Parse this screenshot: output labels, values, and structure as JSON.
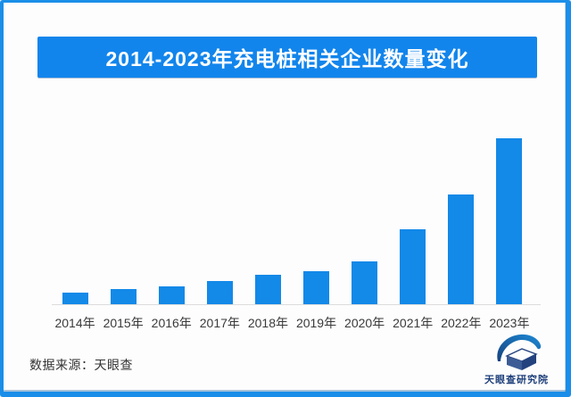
{
  "frame": {
    "border_color": "#1a8ee8",
    "background_color": "#fdfdfd"
  },
  "header": {
    "title": "2014-2023年充电桩相关企业数量变化",
    "banner_color": "#1285ec",
    "title_color": "#ffffff"
  },
  "chart_data": {
    "type": "bar",
    "title": "2014-2023年充电桩相关企业数量变化",
    "categories": [
      "2014年",
      "2015年",
      "2016年",
      "2017年",
      "2018年",
      "2019年",
      "2020年",
      "2021年",
      "2022年",
      "2023年"
    ],
    "values": [
      7,
      9,
      11,
      14,
      18,
      20,
      26,
      45,
      66,
      100
    ],
    "values_note": "relative bar heights estimated from pixels (2023 = 100); the chart displays no numeric axis, gridlines or data labels",
    "xlabel": "",
    "ylabel": "",
    "ylim": [
      0,
      100
    ],
    "grid": false,
    "legend": false,
    "bar_color": "#1389e8",
    "axis_line_color": "#dcdcdc",
    "tick_label_color": "#3a3a3a"
  },
  "footer": {
    "source_label": "数据来源：天眼查",
    "logo": {
      "name": "天眼查研究院",
      "text_color": "#1e3f7a",
      "swoosh_color_dark": "#15427e",
      "swoosh_color_light": "#1e8ad6"
    }
  }
}
